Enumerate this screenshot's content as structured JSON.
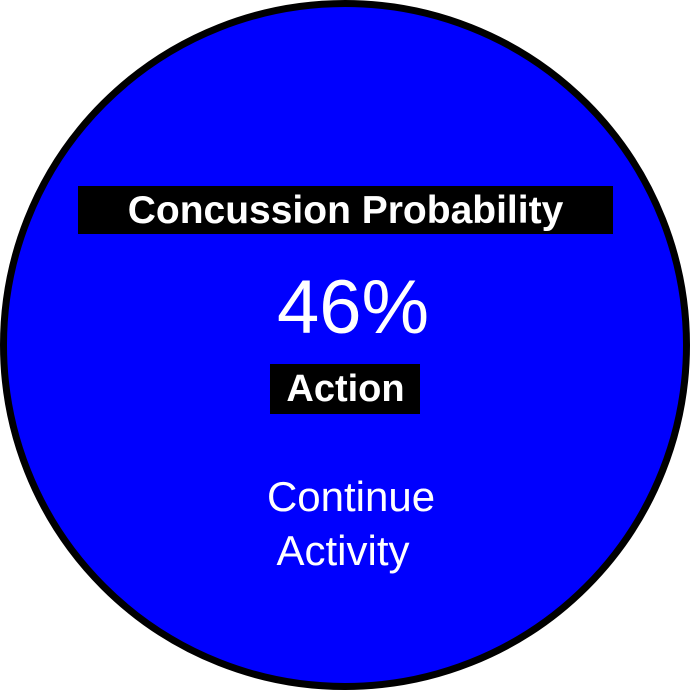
{
  "dial": {
    "title": "Concussion Probability",
    "probability_text": "46%",
    "probability": 0.46,
    "action_label": "Action",
    "recommendation_lines": [
      "Continue",
      "Activity"
    ]
  },
  "colors": {
    "dial_fill": "#0000fe",
    "dial_border": "#000000",
    "label_background": "#000000",
    "text": "#ffffff",
    "page_background": "#ffffff"
  }
}
